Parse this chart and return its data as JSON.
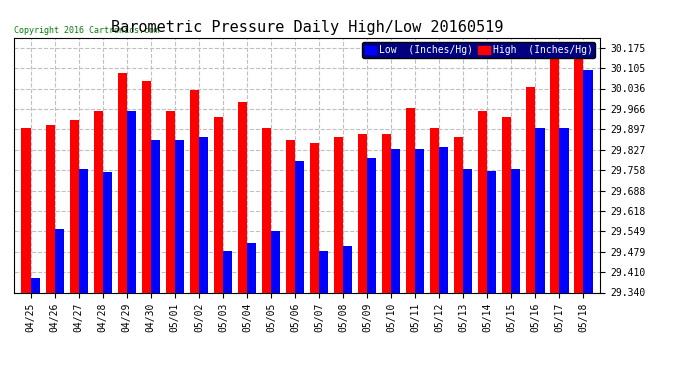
{
  "title": "Barometric Pressure Daily High/Low 20160519",
  "copyright": "Copyright 2016 Cartronics.com",
  "legend_low": "Low  (Inches/Hg)",
  "legend_high": "High  (Inches/Hg)",
  "dates": [
    "04/25",
    "04/26",
    "04/27",
    "04/28",
    "04/29",
    "04/30",
    "05/01",
    "05/02",
    "05/03",
    "05/04",
    "05/05",
    "05/06",
    "05/07",
    "05/08",
    "05/09",
    "05/10",
    "05/11",
    "05/12",
    "05/13",
    "05/14",
    "05/15",
    "05/16",
    "05/17",
    "05/18"
  ],
  "low": [
    29.39,
    29.555,
    29.76,
    29.75,
    29.96,
    29.86,
    29.86,
    29.87,
    29.48,
    29.51,
    29.55,
    29.79,
    29.48,
    29.5,
    29.8,
    29.83,
    29.83,
    29.835,
    29.76,
    29.755,
    29.76,
    29.9,
    29.9,
    30.1
  ],
  "high": [
    29.9,
    29.91,
    29.93,
    29.96,
    30.09,
    30.06,
    29.96,
    30.03,
    29.94,
    29.99,
    29.9,
    29.86,
    29.85,
    29.87,
    29.88,
    29.88,
    29.97,
    29.9,
    29.87,
    29.96,
    29.94,
    30.04,
    30.175,
    30.175
  ],
  "ylim_min": 29.34,
  "ylim_max": 30.21,
  "yticks": [
    29.34,
    29.41,
    29.479,
    29.549,
    29.618,
    29.688,
    29.758,
    29.827,
    29.897,
    29.966,
    30.036,
    30.105,
    30.175
  ],
  "bg_color": "#ffffff",
  "low_color": "#0000ff",
  "high_color": "#ff0000",
  "grid_color": "#c0c0c0",
  "title_fontsize": 11,
  "tick_fontsize": 7,
  "bar_width": 0.38
}
